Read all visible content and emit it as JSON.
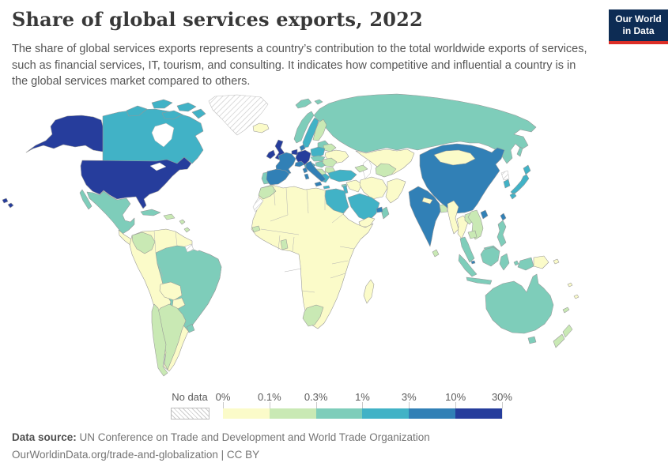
{
  "header": {
    "title": "Share of global services exports, 2022",
    "subtitle": "The share of global services exports represents a country’s contribution to the total worldwide exports of services, such as financial services, IT, tourism, and consulting. It indicates how competitive and influential a country is in the global services market compared to others."
  },
  "logo": {
    "line1": "Our World",
    "line2": "in Data",
    "background": "#0d2c54",
    "accent": "#dc2e27"
  },
  "chart_data": {
    "type": "choropleth",
    "title": "Share of global services exports, 2022",
    "unit": "share of world services exports",
    "legend": {
      "no_data_label": "No data",
      "tick_labels": [
        "0%",
        "0.1%",
        "0.3%",
        "1%",
        "3%",
        "10%",
        "30%"
      ],
      "bins": [
        {
          "range": "0%-0.1%",
          "color": "#fbfbc9"
        },
        {
          "range": "0.1%-0.3%",
          "color": "#c9e9b4"
        },
        {
          "range": "0.3%-1%",
          "color": "#7ecdba"
        },
        {
          "range": "1%-3%",
          "color": "#41b2c6"
        },
        {
          "range": "3%-10%",
          "color": "#3180b6"
        },
        {
          "range": "10%-30%",
          "color": "#263d9c"
        }
      ],
      "no_data_hatch_color": "#cccccc"
    },
    "regions": {
      "greenland": "no_data",
      "french-guiana": "no_data",
      "western-sahara": "no_data",
      "north-korea": "no_data",
      "canada": 3,
      "arctic-islands": 3,
      "alaska": 5,
      "united-states": 5,
      "hawaii": 5,
      "mexico": 2,
      "central-america": 0,
      "cuba": 2,
      "hispaniola": 1,
      "caribbean": 1,
      "south-america-other": 0,
      "colombia": 1,
      "brazil": 2,
      "bolivia": 0,
      "paraguay": 0,
      "chile": 1,
      "argentina": 1,
      "uruguay": 2,
      "iceland": 0,
      "united-kingdom": 5,
      "ireland": 5,
      "norway": 2,
      "sweden": 3,
      "finland": 1,
      "denmark": 4,
      "baltic-states": 2,
      "germany": 5,
      "benelux": 5,
      "france": 4,
      "spain": 4,
      "portugal": 2,
      "italy": 4,
      "switzerland": 4,
      "austria": 3,
      "poland": 3,
      "czechia-slovakia": 2,
      "hungary": 2,
      "romania": 1,
      "western-balkans": 1,
      "bulgaria": 1,
      "greece": 3,
      "belarus": 1,
      "ukraine": 0,
      "svalbard": 2,
      "russia": 2,
      "kazakhstan-central-asia": 0,
      "uzbekistan-turkmenistan": 1,
      "caucasus": 1,
      "turkey": 3,
      "cyprus": 2,
      "syria-iraq": 0,
      "israel": 3,
      "iran": 0,
      "afghanistan-pakistan": 0,
      "saudi-arabia": 3,
      "yemen": 0,
      "oman": 2,
      "uae": 4,
      "egypt": 3,
      "morocco": 1,
      "senegal": 1,
      "ghana": 1,
      "south-africa": 1,
      "madagascar": 0,
      "africa-other": 0,
      "india": 4,
      "sri-lanka": 1,
      "nepal": 0,
      "bangladesh": 1,
      "china": 4,
      "mongolia": 0,
      "hong-kong": 4,
      "taiwan": 4,
      "myanmar": 0,
      "thailand": 0,
      "laos": 1,
      "vietnam": 1,
      "cambodia": 1,
      "malaysia": 2,
      "singapore": 4,
      "indonesia": 2,
      "philippines": 2,
      "japan": 3,
      "south-korea": 3,
      "australia": 2,
      "papua-new-guinea": 0,
      "new-zealand": 1,
      "pacific-islands": 0,
      "new-caledonia": 1
    }
  },
  "footer": {
    "source_label": "Data source:",
    "source_text": " UN Conference on Trade and Development and World Trade Organization",
    "license_line": "OurWorldinData.org/trade-and-globalization | CC BY"
  }
}
